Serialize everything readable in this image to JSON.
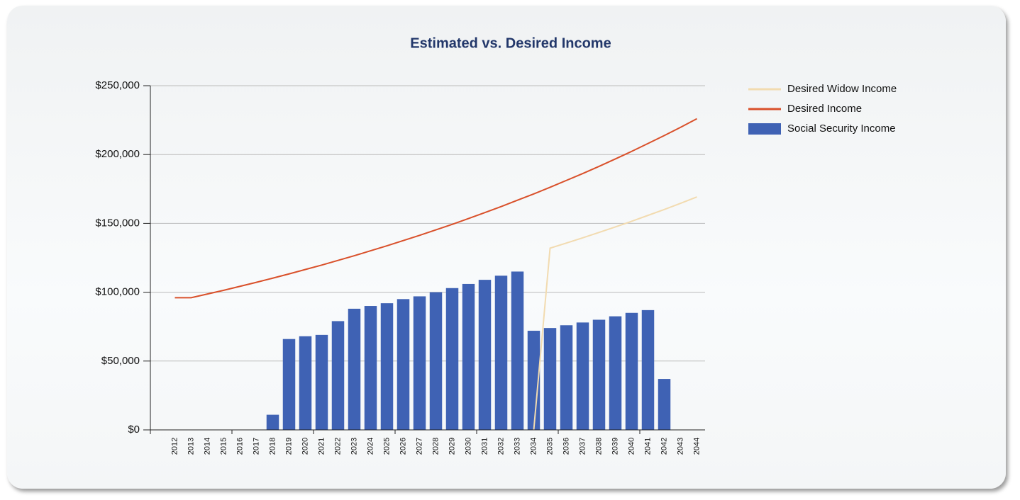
{
  "chart_data": {
    "type": "bar",
    "title": "Estimated vs. Desired Income",
    "categories": [
      null,
      "2012",
      "2013",
      "2014",
      "2015",
      "2016",
      "2017",
      "2018",
      "2019",
      "2020",
      "2021",
      "2022",
      "2023",
      "2024",
      "2025",
      "2026",
      "2027",
      "2028",
      "2029",
      "2030",
      "2031",
      "2032",
      "2033",
      "2034",
      "2035",
      "2036",
      "2037",
      "2038",
      "2039",
      "2040",
      "2041",
      "2042",
      "2043",
      "2044"
    ],
    "series": [
      {
        "name": "Desired Widow Income",
        "type": "line",
        "color": "#f2dbb0",
        "values": [
          null,
          null,
          null,
          null,
          null,
          null,
          null,
          null,
          null,
          null,
          null,
          null,
          null,
          null,
          null,
          null,
          null,
          null,
          null,
          null,
          null,
          null,
          null,
          0,
          132000,
          135700,
          139500,
          143400,
          147400,
          151500,
          155800,
          160100,
          164600,
          169200
        ]
      },
      {
        "name": "Desired Income",
        "type": "line",
        "color": "#d9502a",
        "values": [
          null,
          96000,
          96000,
          98700,
          101400,
          104300,
          107200,
          110200,
          113300,
          116500,
          119700,
          123100,
          126500,
          130100,
          133700,
          137500,
          141300,
          145300,
          149300,
          153500,
          157800,
          162200,
          166800,
          171400,
          176200,
          181200,
          186200,
          191400,
          196800,
          202300,
          208000,
          213800,
          219800,
          226000
        ]
      },
      {
        "name": "Social Security Income",
        "type": "bar",
        "color": "#3f62b4",
        "values": [
          0,
          0,
          0,
          0,
          0,
          0,
          0,
          11000,
          66000,
          68000,
          69000,
          79000,
          88000,
          90000,
          92000,
          95000,
          97000,
          100000,
          103000,
          106000,
          109000,
          112000,
          115000,
          72000,
          74000,
          76000,
          78000,
          80000,
          82500,
          85000,
          87000,
          37000,
          0,
          0
        ]
      }
    ],
    "ylim": [
      0,
      250000
    ],
    "yticks": [
      {
        "value": 0,
        "label": "$0"
      },
      {
        "value": 50000,
        "label": "$50,000"
      },
      {
        "value": 100000,
        "label": "$100,000"
      },
      {
        "value": 150000,
        "label": "$150,000"
      },
      {
        "value": 200000,
        "label": "$200,000"
      },
      {
        "value": 250000,
        "label": "$250,000"
      }
    ],
    "grid": true,
    "legend": "right"
  }
}
